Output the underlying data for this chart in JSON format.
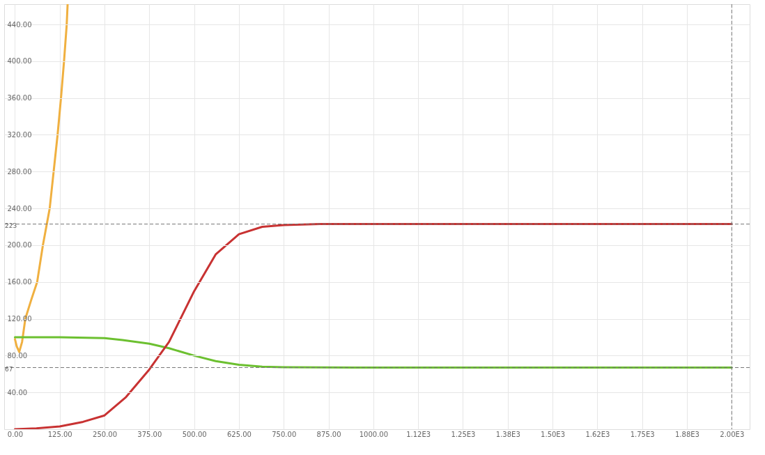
{
  "chart_data": {
    "type": "line",
    "xlim": [
      -30,
      2050
    ],
    "ylim": [
      0,
      462
    ],
    "xticks": [
      {
        "value": 0,
        "label": "0.00"
      },
      {
        "value": 125,
        "label": "125.00"
      },
      {
        "value": 250,
        "label": "250.00"
      },
      {
        "value": 375,
        "label": "375.00"
      },
      {
        "value": 500,
        "label": "500.00"
      },
      {
        "value": 625,
        "label": "625.00"
      },
      {
        "value": 750,
        "label": "750.00"
      },
      {
        "value": 875,
        "label": "875.00"
      },
      {
        "value": 1000,
        "label": "1000.00"
      },
      {
        "value": 1125,
        "label": "1.12E3"
      },
      {
        "value": 1250,
        "label": "1.25E3"
      },
      {
        "value": 1375,
        "label": "1.38E3"
      },
      {
        "value": 1500,
        "label": "1.50E3"
      },
      {
        "value": 1625,
        "label": "1.62E3"
      },
      {
        "value": 1750,
        "label": "1.75E3"
      },
      {
        "value": 1875,
        "label": "1.88E3"
      },
      {
        "value": 2000,
        "label": "2.00E3"
      }
    ],
    "yticks": [
      {
        "value": 40,
        "label": "40.00"
      },
      {
        "value": 80,
        "label": "80.00"
      },
      {
        "value": 120,
        "label": "120.00"
      },
      {
        "value": 160,
        "label": "160.00"
      },
      {
        "value": 200,
        "label": "200.00"
      },
      {
        "value": 240,
        "label": "240.00"
      },
      {
        "value": 280,
        "label": "280.00"
      },
      {
        "value": 320,
        "label": "320.00"
      },
      {
        "value": 360,
        "label": "360.00"
      },
      {
        "value": 400,
        "label": "400.00"
      },
      {
        "value": 440,
        "label": "440.00"
      }
    ],
    "grid": true,
    "marker": "none",
    "line_style": "solid",
    "series": [
      {
        "color": "#f0b040",
        "x": [
          0,
          5,
          12,
          20,
          29,
          45,
          62,
          78,
          97,
          108,
          119,
          128.5,
          137,
          144.5,
          147
        ],
        "values": [
          98,
          90,
          84,
          95,
          120,
          140,
          160,
          200,
          240,
          280,
          320,
          360,
          400,
          440,
          462
        ]
      },
      {
        "color": "#6cc030",
        "x": [
          0,
          125,
          250,
          300,
          375,
          430,
          500,
          560,
          625,
          690,
          750,
          1000,
          1500,
          2000
        ],
        "values": [
          100,
          100,
          99,
          97,
          93,
          88,
          80,
          74,
          70,
          68,
          67.5,
          67,
          67,
          67
        ]
      },
      {
        "color": "#c83232",
        "x": [
          0,
          60,
          125,
          190,
          250,
          310,
          375,
          430,
          500,
          560,
          625,
          690,
          750,
          850,
          1000,
          1500,
          2000
        ],
        "values": [
          0,
          1,
          3,
          8,
          15,
          35,
          65,
          95,
          150,
          190,
          212,
          220,
          222,
          223,
          223,
          223,
          223
        ]
      }
    ],
    "ref_lines": [
      {
        "axis": "y",
        "value": 223,
        "label": "223",
        "line_style": "dashed",
        "color": "#777777"
      },
      {
        "axis": "y",
        "value": 67,
        "label": "67",
        "line_style": "dashed",
        "color": "#777777"
      },
      {
        "axis": "x",
        "value": 2000,
        "line_style": "dashed",
        "color": "#777777"
      }
    ]
  }
}
